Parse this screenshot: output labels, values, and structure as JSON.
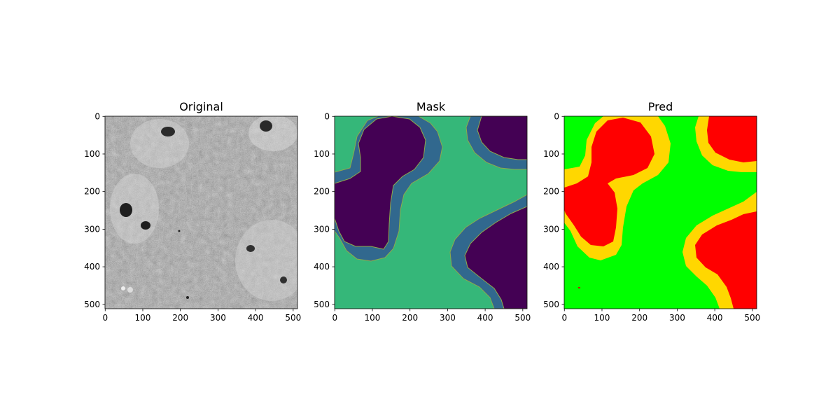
{
  "chart_data": [
    {
      "type": "heatmap",
      "title": "Original",
      "image_size": [
        512,
        512
      ],
      "xticks": [
        0,
        100,
        200,
        300,
        400,
        500
      ],
      "yticks": [
        0,
        100,
        200,
        300,
        400,
        500
      ],
      "xlim": [
        0,
        512
      ],
      "ylim": [
        512,
        0
      ],
      "colormap": "gray",
      "content": "grayscale microscopy surface image"
    },
    {
      "type": "heatmap",
      "title": "Mask",
      "image_size": [
        512,
        512
      ],
      "xticks": [
        0,
        100,
        200,
        300,
        400,
        500
      ],
      "yticks": [
        0,
        100,
        200,
        300,
        400,
        500
      ],
      "xlim": [
        0,
        512
      ],
      "ylim": [
        512,
        0
      ],
      "colormap": "viridis",
      "class_colors": {
        "core": "#440154",
        "border": "#31688e",
        "background": "#35b779"
      }
    },
    {
      "type": "heatmap",
      "title": "Pred",
      "image_size": [
        512,
        512
      ],
      "xticks": [
        0,
        100,
        200,
        300,
        400,
        500
      ],
      "yticks": [
        0,
        100,
        200,
        300,
        400,
        500
      ],
      "xlim": [
        0,
        512
      ],
      "ylim": [
        512,
        0
      ],
      "colormap": "custom",
      "class_colors": {
        "core": "#ff0000",
        "border": "#ffd700",
        "background": "#00ff00"
      }
    }
  ]
}
